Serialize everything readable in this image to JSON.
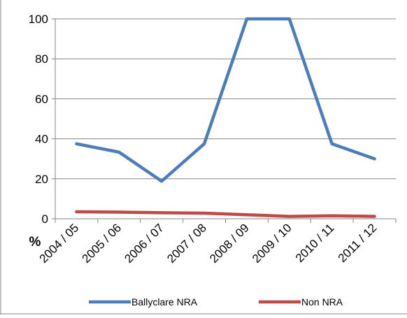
{
  "chart_data": {
    "type": "line",
    "title": "",
    "xlabel": "",
    "ylabel": "%",
    "ylim": [
      0,
      100
    ],
    "yticks": [
      0,
      20,
      40,
      60,
      80,
      100
    ],
    "categories": [
      "2004 / 05",
      "2005 / 06",
      "2006 / 07",
      "2007 / 08",
      "2008 / 09",
      "2009 / 10",
      "2010 / 11",
      "2011 / 12"
    ],
    "series": [
      {
        "name": "Ballyclare NRA",
        "color": "#4a7ebb",
        "values": [
          37.5,
          33.3,
          18.8,
          37.5,
          100,
          100,
          37.5,
          30
        ]
      },
      {
        "name": "Non NRA",
        "color": "#be4b48",
        "values": [
          3.5,
          3.3,
          3.0,
          2.8,
          2.0,
          1.2,
          1.5,
          1.2
        ]
      }
    ],
    "grid": {
      "horizontal": true,
      "vertical": false
    },
    "legend_position": "bottom"
  }
}
